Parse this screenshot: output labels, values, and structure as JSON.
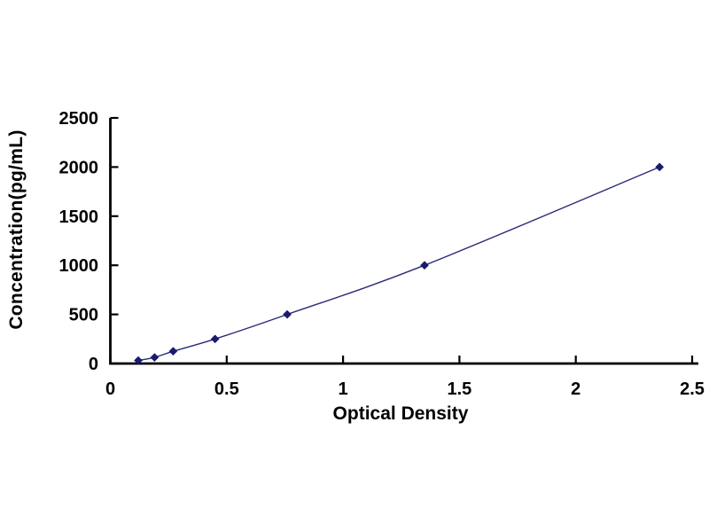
{
  "page": {
    "background": "#ffffff"
  },
  "chart_data": {
    "type": "line",
    "subtype": "scatter-with-smoothed-line-and-diamond-markers",
    "title": "",
    "xlabel": "Optical Density",
    "ylabel": "Concentration(pg/mL)",
    "x": [
      0.12,
      0.19,
      0.27,
      0.45,
      0.76,
      1.35,
      2.36
    ],
    "y": [
      31.25,
      62.5,
      125,
      250,
      500,
      1000,
      2000
    ],
    "xlim": [
      0,
      2.5
    ],
    "ylim": [
      0,
      2500
    ],
    "x_ticks": [
      0,
      0.5,
      1,
      1.5,
      2,
      2.5
    ],
    "x_tick_labels": [
      "0",
      "0.5",
      "1",
      "1.5",
      "2",
      "2.5"
    ],
    "y_ticks": [
      0,
      500,
      1000,
      1500,
      2000,
      2500
    ],
    "y_tick_labels": [
      "0",
      "500",
      "1000",
      "1500",
      "2000",
      "2500"
    ],
    "grid": false,
    "legend": false,
    "marker": "diamond",
    "colors": {
      "marker": "#1a1a70",
      "line": "#2a2a78",
      "axis": "#000000",
      "tick_text": "#000000",
      "background": "#ffffff"
    }
  }
}
